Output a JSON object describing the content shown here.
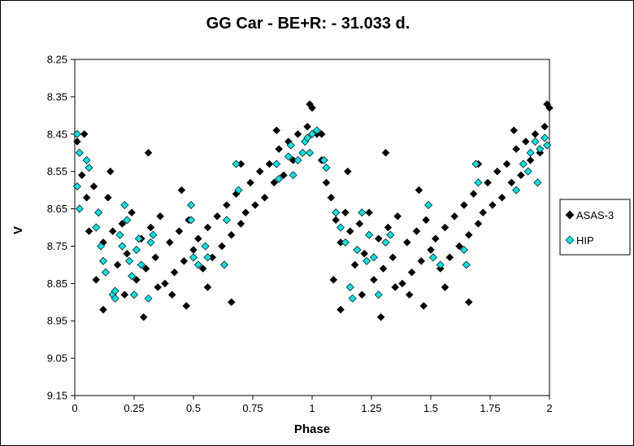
{
  "chart_data": {
    "type": "scatter",
    "title": "GG Car - BE+R: - 31.033 d.",
    "xlabel": "Phase",
    "ylabel": "V",
    "xlim": [
      0,
      2
    ],
    "ylim": [
      8.25,
      9.15
    ],
    "y_inverted": true,
    "grid": false,
    "legend_position": "right",
    "xticks": [
      0,
      0.25,
      0.5,
      0.75,
      1,
      1.25,
      1.5,
      1.75,
      2
    ],
    "xtick_labels": [
      "0",
      "0.25",
      "0.5",
      "0.75",
      "1",
      "1.25",
      "1.5",
      "1.75",
      "2"
    ],
    "yticks": [
      8.25,
      8.35,
      8.45,
      8.55,
      8.65,
      8.75,
      8.85,
      8.95,
      9.05,
      9.15
    ],
    "ytick_labels": [
      "8.25",
      "8.35",
      "8.45",
      "8.55",
      "8.65",
      "8.75",
      "8.85",
      "8.95",
      "9.05",
      "9.15"
    ],
    "series": [
      {
        "name": "ASAS-3",
        "color": "#000000",
        "marker": "diamond",
        "points": [
          [
            0.01,
            8.47
          ],
          [
            0.03,
            8.56
          ],
          [
            0.05,
            8.62
          ],
          [
            0.06,
            8.71
          ],
          [
            0.08,
            8.59
          ],
          [
            0.1,
            8.66
          ],
          [
            0.12,
            8.74
          ],
          [
            0.14,
            8.62
          ],
          [
            0.16,
            8.71
          ],
          [
            0.18,
            8.8
          ],
          [
            0.2,
            8.69
          ],
          [
            0.22,
            8.77
          ],
          [
            0.24,
            8.66
          ],
          [
            0.26,
            8.84
          ],
          [
            0.28,
            8.73
          ],
          [
            0.3,
            8.81
          ],
          [
            0.32,
            8.7
          ],
          [
            0.34,
            8.78
          ],
          [
            0.36,
            8.67
          ],
          [
            0.38,
            8.85
          ],
          [
            0.4,
            8.74
          ],
          [
            0.42,
            8.82
          ],
          [
            0.44,
            8.71
          ],
          [
            0.46,
            8.79
          ],
          [
            0.48,
            8.68
          ],
          [
            0.5,
            8.76
          ],
          [
            0.52,
            8.73
          ],
          [
            0.54,
            8.81
          ],
          [
            0.56,
            8.7
          ],
          [
            0.58,
            8.78
          ],
          [
            0.6,
            8.67
          ],
          [
            0.62,
            8.75
          ],
          [
            0.64,
            8.64
          ],
          [
            0.66,
            8.72
          ],
          [
            0.68,
            8.61
          ],
          [
            0.7,
            8.69
          ],
          [
            0.72,
            8.66
          ],
          [
            0.74,
            8.58
          ],
          [
            0.76,
            8.64
          ],
          [
            0.78,
            8.55
          ],
          [
            0.8,
            8.62
          ],
          [
            0.82,
            8.53
          ],
          [
            0.84,
            8.58
          ],
          [
            0.86,
            8.49
          ],
          [
            0.88,
            8.56
          ],
          [
            0.9,
            8.47
          ],
          [
            0.92,
            8.52
          ],
          [
            0.94,
            8.45
          ],
          [
            0.96,
            8.5
          ],
          [
            0.98,
            8.43
          ],
          [
            1.0,
            8.38
          ],
          [
            1.02,
            8.45
          ],
          [
            1.04,
            8.52
          ],
          [
            1.06,
            8.58
          ],
          [
            1.08,
            8.62
          ],
          [
            1.1,
            8.68
          ],
          [
            1.12,
            8.74
          ],
          [
            1.14,
            8.66
          ],
          [
            1.16,
            8.71
          ],
          [
            1.18,
            8.8
          ],
          [
            1.2,
            8.69
          ],
          [
            1.22,
            8.77
          ],
          [
            1.24,
            8.66
          ],
          [
            1.26,
            8.84
          ],
          [
            1.28,
            8.73
          ],
          [
            1.3,
            8.81
          ],
          [
            1.32,
            8.7
          ],
          [
            1.34,
            8.78
          ],
          [
            1.36,
            8.67
          ],
          [
            1.38,
            8.85
          ],
          [
            1.4,
            8.74
          ],
          [
            1.42,
            8.82
          ],
          [
            1.44,
            8.71
          ],
          [
            1.46,
            8.79
          ],
          [
            1.48,
            8.68
          ],
          [
            1.5,
            8.76
          ],
          [
            1.52,
            8.73
          ],
          [
            1.54,
            8.81
          ],
          [
            1.56,
            8.7
          ],
          [
            1.58,
            8.78
          ],
          [
            1.6,
            8.67
          ],
          [
            1.62,
            8.75
          ],
          [
            1.64,
            8.64
          ],
          [
            1.66,
            8.72
          ],
          [
            1.68,
            8.61
          ],
          [
            1.7,
            8.69
          ],
          [
            1.72,
            8.66
          ],
          [
            1.74,
            8.58
          ],
          [
            1.76,
            8.64
          ],
          [
            1.78,
            8.55
          ],
          [
            1.8,
            8.62
          ],
          [
            1.82,
            8.53
          ],
          [
            1.84,
            8.58
          ],
          [
            1.86,
            8.49
          ],
          [
            1.88,
            8.56
          ],
          [
            1.9,
            8.47
          ],
          [
            1.92,
            8.52
          ],
          [
            1.94,
            8.45
          ],
          [
            1.96,
            8.5
          ],
          [
            1.98,
            8.43
          ],
          [
            2.0,
            8.38
          ],
          [
            0.99,
            8.37
          ],
          [
            1.99,
            8.37
          ],
          [
            0.12,
            8.92
          ],
          [
            1.12,
            8.92
          ],
          [
            0.29,
            8.94
          ],
          [
            1.29,
            8.94
          ],
          [
            0.47,
            8.91
          ],
          [
            1.47,
            8.91
          ],
          [
            0.31,
            8.5
          ],
          [
            1.31,
            8.5
          ],
          [
            0.04,
            8.45
          ],
          [
            1.04,
            8.45
          ],
          [
            0.66,
            8.9
          ],
          [
            1.66,
            8.9
          ],
          [
            0.21,
            8.88
          ],
          [
            1.21,
            8.88
          ],
          [
            0.41,
            8.88
          ],
          [
            1.41,
            8.88
          ],
          [
            0.56,
            8.86
          ],
          [
            1.56,
            8.86
          ],
          [
            0.09,
            8.84
          ],
          [
            1.09,
            8.84
          ],
          [
            0.35,
            8.86
          ],
          [
            1.35,
            8.86
          ],
          [
            0.15,
            8.55
          ],
          [
            1.15,
            8.55
          ],
          [
            0.45,
            8.6
          ],
          [
            1.45,
            8.6
          ],
          [
            0.7,
            8.53
          ],
          [
            1.7,
            8.53
          ],
          [
            0.85,
            8.44
          ],
          [
            1.85,
            8.44
          ]
        ]
      },
      {
        "name": "HIP",
        "color": "#00e5e5",
        "marker": "diamond",
        "points": [
          [
            0.01,
            8.45
          ],
          [
            0.02,
            8.5
          ],
          [
            0.01,
            8.59
          ],
          [
            0.02,
            8.65
          ],
          [
            0.05,
            8.52
          ],
          [
            0.06,
            8.54
          ],
          [
            0.09,
            8.7
          ],
          [
            0.1,
            8.66
          ],
          [
            0.11,
            8.75
          ],
          [
            0.12,
            8.79
          ],
          [
            0.13,
            8.82
          ],
          [
            0.16,
            8.88
          ],
          [
            0.17,
            8.89
          ],
          [
            0.17,
            8.87
          ],
          [
            0.19,
            8.72
          ],
          [
            0.2,
            8.75
          ],
          [
            0.21,
            8.64
          ],
          [
            0.22,
            8.68
          ],
          [
            0.23,
            8.79
          ],
          [
            0.24,
            8.83
          ],
          [
            0.25,
            8.88
          ],
          [
            0.26,
            8.76
          ],
          [
            0.27,
            8.73
          ],
          [
            0.28,
            8.8
          ],
          [
            0.31,
            8.89
          ],
          [
            0.32,
            8.74
          ],
          [
            0.33,
            8.72
          ],
          [
            0.49,
            8.64
          ],
          [
            0.49,
            8.68
          ],
          [
            0.5,
            8.78
          ],
          [
            0.52,
            8.8
          ],
          [
            0.55,
            8.75
          ],
          [
            0.56,
            8.78
          ],
          [
            0.63,
            8.8
          ],
          [
            0.64,
            8.68
          ],
          [
            0.68,
            8.53
          ],
          [
            0.69,
            8.6
          ],
          [
            0.85,
            8.53
          ],
          [
            0.86,
            8.57
          ],
          [
            0.9,
            8.51
          ],
          [
            0.91,
            8.48
          ],
          [
            0.92,
            8.56
          ],
          [
            0.94,
            8.52
          ],
          [
            0.96,
            8.5
          ],
          [
            0.97,
            8.47
          ],
          [
            0.98,
            8.46
          ],
          [
            0.99,
            8.5
          ],
          [
            1.0,
            8.45
          ],
          [
            1.02,
            8.44
          ],
          [
            1.05,
            8.52
          ],
          [
            1.06,
            8.54
          ],
          [
            1.1,
            8.66
          ],
          [
            1.12,
            8.7
          ],
          [
            1.14,
            8.74
          ],
          [
            1.16,
            8.86
          ],
          [
            1.17,
            8.89
          ],
          [
            1.19,
            8.76
          ],
          [
            1.21,
            8.66
          ],
          [
            1.23,
            8.79
          ],
          [
            1.24,
            8.72
          ],
          [
            1.26,
            8.78
          ],
          [
            1.28,
            8.88
          ],
          [
            1.31,
            8.74
          ],
          [
            1.33,
            8.72
          ],
          [
            1.49,
            8.64
          ],
          [
            1.51,
            8.78
          ],
          [
            1.54,
            8.8
          ],
          [
            1.64,
            8.76
          ],
          [
            1.65,
            8.8
          ],
          [
            1.69,
            8.53
          ],
          [
            1.7,
            8.58
          ],
          [
            1.86,
            8.6
          ],
          [
            1.89,
            8.53
          ],
          [
            1.91,
            8.55
          ],
          [
            1.92,
            8.5
          ],
          [
            1.94,
            8.47
          ],
          [
            1.96,
            8.49
          ],
          [
            1.98,
            8.46
          ],
          [
            1.99,
            8.48
          ],
          [
            1.95,
            8.58
          ]
        ]
      }
    ]
  }
}
